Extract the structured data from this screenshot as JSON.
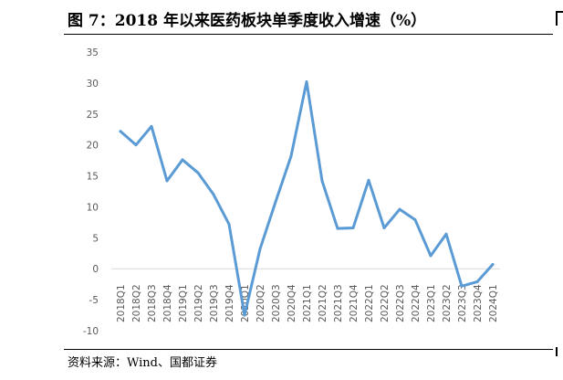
{
  "title": "图 7：2018 年以来医药板块单季度收入增速（%）",
  "source": "资料来源：Wind、国都证券",
  "chart_data": {
    "type": "line",
    "title": "",
    "xlabel": "",
    "ylabel": "",
    "ylim": [
      -10,
      35
    ],
    "yticks": [
      -10,
      -5,
      0,
      5,
      10,
      15,
      20,
      25,
      30,
      35
    ],
    "grid": false,
    "legend": "none",
    "categories": [
      "2018Q1",
      "2018Q2",
      "2018Q3",
      "2018Q4",
      "2019Q1",
      "2019Q2",
      "2019Q3",
      "2019Q4",
      "2020Q1",
      "2020Q2",
      "2020Q3",
      "2020Q4",
      "2021Q1",
      "2021Q2",
      "2021Q3",
      "2021Q4",
      "2022Q1",
      "2022Q2",
      "2022Q3",
      "2022Q4",
      "2023Q1",
      "2023Q2",
      "2023Q3",
      "2023Q4",
      "2024Q1"
    ],
    "series": [
      {
        "name": "",
        "color": "#5b9bd5",
        "values": [
          22.2,
          20.0,
          23.0,
          14.2,
          17.6,
          15.5,
          12.0,
          7.2,
          -7.5,
          3.2,
          10.8,
          18.2,
          30.2,
          14.2,
          6.5,
          6.6,
          14.3,
          6.6,
          9.6,
          7.9,
          2.1,
          5.6,
          -2.8,
          -2.1,
          0.7
        ]
      }
    ]
  }
}
